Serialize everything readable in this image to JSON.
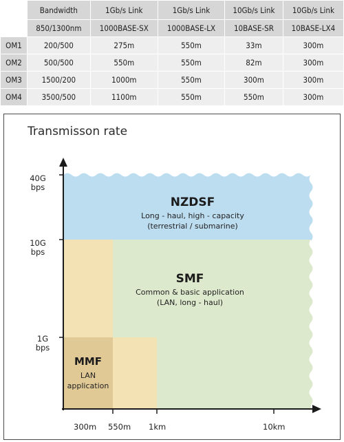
{
  "table": {
    "header_row1": [
      "",
      "Bandwidth",
      "1Gb/s Link",
      "1Gb/s Link",
      "10Gb/s Link",
      "10Gb/s Link"
    ],
    "header_row2": [
      "",
      "850/1300nm",
      "1000BASE-SX",
      "1000BASE-LX",
      "10BASE-SR",
      "10BASE-LX4"
    ],
    "rows": [
      [
        "OM1",
        "200/500",
        "275m",
        "550m",
        "33m",
        "300m"
      ],
      [
        "OM2",
        "500/500",
        "550m",
        "550m",
        "82m",
        "300m"
      ],
      [
        "OM3",
        "1500/200",
        "1000m",
        "550m",
        "300m",
        "300m"
      ],
      [
        "OM4",
        "3500/500",
        "1100m",
        "550m",
        "550m",
        "300m"
      ]
    ]
  },
  "diagram": {
    "title": "Transmisson rate",
    "y_ticks": [
      {
        "line1": "40G",
        "line2": "bps"
      },
      {
        "line1": "10G",
        "line2": "bps"
      },
      {
        "line1": "1G",
        "line2": "bps"
      }
    ],
    "x_ticks": [
      "300m",
      "550m",
      "1km",
      "10km"
    ],
    "regions": {
      "nzdsf": {
        "name": "NZDSF",
        "desc1": "Long - haul, high - capacity",
        "desc2": "(terrestrial / submarine)"
      },
      "smf": {
        "name": "SMF",
        "desc1": "Common & basic application",
        "desc2": "(LAN, long - haul)"
      },
      "mmf": {
        "name": "MMF",
        "desc1": "LAN",
        "desc2": "application"
      }
    },
    "colors": {
      "nzdsf": "#bcdcf0",
      "smf": "#dde9cc",
      "mmf_light": "#f3e3b4",
      "mmf_dark": "#e1c996",
      "axis": "#1a1a1a"
    }
  }
}
